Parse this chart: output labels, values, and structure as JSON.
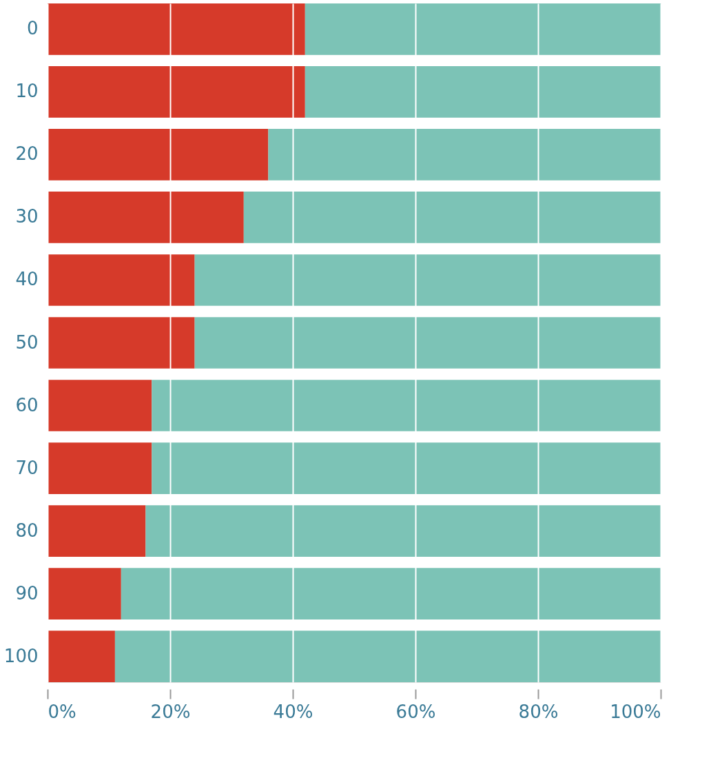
{
  "chart_data": {
    "type": "bar",
    "orientation": "horizontal",
    "stacked": true,
    "categories": [
      "0",
      "10",
      "20",
      "30",
      "40",
      "50",
      "60",
      "70",
      "80",
      "90",
      "100"
    ],
    "series": [
      {
        "color": "#d63a2a",
        "values": [
          42,
          42,
          36,
          32,
          24,
          24,
          17,
          17,
          16,
          12,
          11
        ]
      },
      {
        "color": "#7cc3b6",
        "values": [
          58,
          58,
          64,
          68,
          76,
          76,
          83,
          83,
          84,
          88,
          89
        ]
      }
    ],
    "xlim": [
      0,
      100
    ],
    "xticks": [
      {
        "value": 0,
        "label": "0%"
      },
      {
        "value": 20,
        "label": "20%"
      },
      {
        "value": 40,
        "label": "40%"
      },
      {
        "value": 60,
        "label": "60%"
      },
      {
        "value": 80,
        "label": "80%"
      },
      {
        "value": 100,
        "label": "100%"
      }
    ],
    "grid": "x",
    "legend": false
  }
}
